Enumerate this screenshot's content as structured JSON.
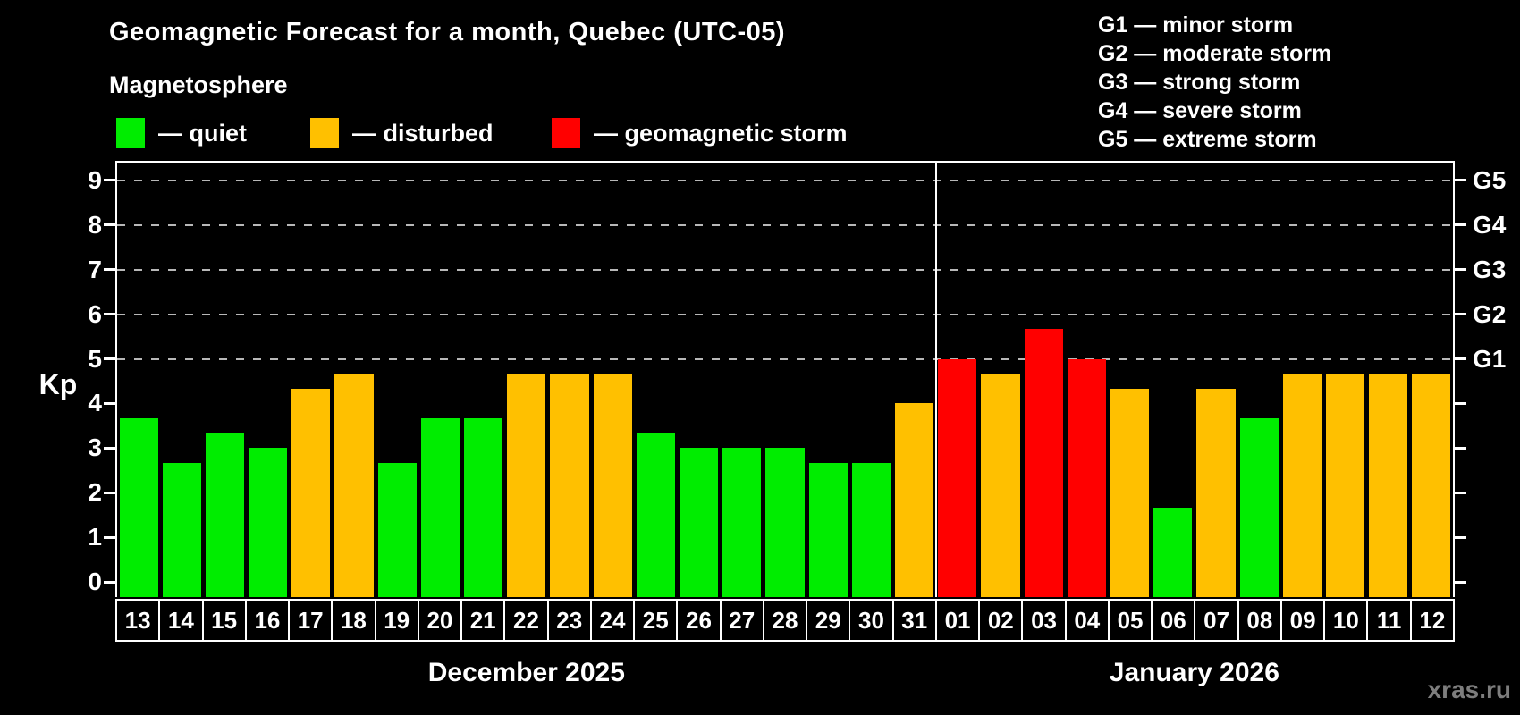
{
  "title": "Geomagnetic Forecast for a month, Quebec (UTC-05)",
  "subtitle": "Magnetosphere",
  "watermark": "xras.ru",
  "legend": [
    {
      "status": "quiet",
      "label": "— quiet",
      "color": "#00ED00"
    },
    {
      "status": "disturbed",
      "label": "— disturbed",
      "color": "#FFC000"
    },
    {
      "status": "storm",
      "label": "— geomagnetic storm",
      "color": "#FF0000"
    }
  ],
  "g_legend": [
    "G1 — minor storm",
    "G2 — moderate storm",
    "G3 — strong storm",
    "G4 — severe storm",
    "G5 — extreme storm"
  ],
  "axes": {
    "y_label": "Kp",
    "y_ticks": [
      0,
      1,
      2,
      3,
      4,
      5,
      6,
      7,
      8,
      9
    ],
    "right_axis": [
      {
        "label": "G1",
        "kp": 5
      },
      {
        "label": "G2",
        "kp": 6
      },
      {
        "label": "G3",
        "kp": 7
      },
      {
        "label": "G4",
        "kp": 8
      },
      {
        "label": "G5",
        "kp": 9
      }
    ]
  },
  "months": [
    {
      "label": "December 2025",
      "days": 19
    },
    {
      "label": "January 2026",
      "days": 12
    }
  ],
  "chart_data": {
    "type": "bar",
    "title": "Geomagnetic Forecast for a month, Quebec (UTC-05)",
    "ylabel": "Kp",
    "ylim": [
      0,
      9
    ],
    "gridlines_at": [
      5,
      6,
      7,
      8,
      9
    ],
    "legend_position": "top",
    "status_colors": {
      "quiet": "#00ED00",
      "disturbed": "#FFC000",
      "storm": "#FF0000"
    },
    "categories": [
      "13",
      "14",
      "15",
      "16",
      "17",
      "18",
      "19",
      "20",
      "21",
      "22",
      "23",
      "24",
      "25",
      "26",
      "27",
      "28",
      "29",
      "30",
      "31",
      "01",
      "02",
      "03",
      "04",
      "05",
      "06",
      "07",
      "08",
      "09",
      "10",
      "11",
      "12"
    ],
    "values": [
      3.67,
      2.67,
      3.33,
      3.0,
      4.33,
      4.67,
      2.67,
      3.67,
      3.67,
      4.67,
      4.67,
      4.67,
      3.33,
      3.0,
      3.0,
      3.0,
      2.67,
      2.67,
      4.0,
      5.0,
      4.67,
      5.67,
      5.0,
      4.33,
      1.67,
      4.33,
      3.67,
      4.67,
      4.67,
      4.67,
      4.67
    ],
    "statuses": [
      "quiet",
      "quiet",
      "quiet",
      "quiet",
      "disturbed",
      "disturbed",
      "quiet",
      "quiet",
      "quiet",
      "disturbed",
      "disturbed",
      "disturbed",
      "quiet",
      "quiet",
      "quiet",
      "quiet",
      "quiet",
      "quiet",
      "disturbed",
      "storm",
      "disturbed",
      "storm",
      "storm",
      "disturbed",
      "quiet",
      "disturbed",
      "quiet",
      "disturbed",
      "disturbed",
      "disturbed",
      "disturbed"
    ]
  }
}
